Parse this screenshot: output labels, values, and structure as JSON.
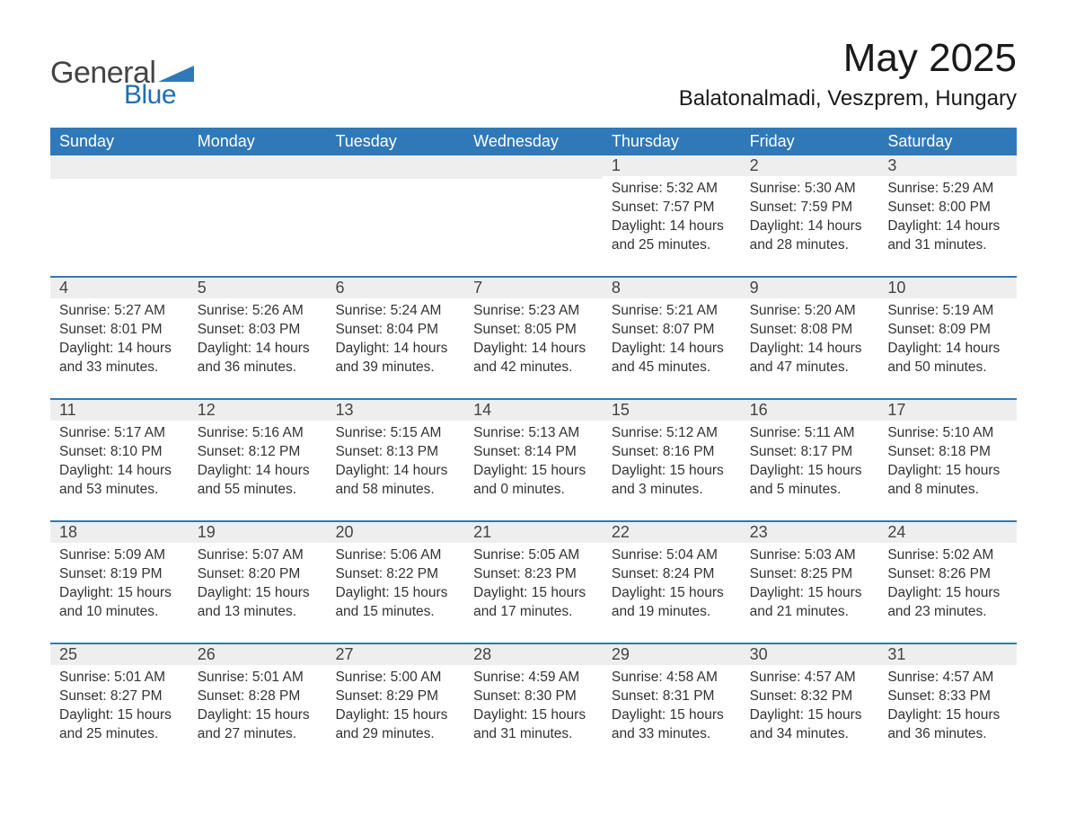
{
  "logo": {
    "text1": "General",
    "text2": "Blue",
    "icon_color": "#2f79b9"
  },
  "title": "May 2025",
  "location": "Balatonalmadi, Veszprem, Hungary",
  "colors": {
    "header_bg": "#2f79b9",
    "daybar_bg": "#eeeeee",
    "row_border": "#2f79b9",
    "text_dark": "#1a1a1a",
    "text_body": "#333333"
  },
  "weekdays": [
    "Sunday",
    "Monday",
    "Tuesday",
    "Wednesday",
    "Thursday",
    "Friday",
    "Saturday"
  ],
  "weeks": [
    [
      {
        "day": "",
        "sunrise": "",
        "sunset": "",
        "daylight": ""
      },
      {
        "day": "",
        "sunrise": "",
        "sunset": "",
        "daylight": ""
      },
      {
        "day": "",
        "sunrise": "",
        "sunset": "",
        "daylight": ""
      },
      {
        "day": "",
        "sunrise": "",
        "sunset": "",
        "daylight": ""
      },
      {
        "day": "1",
        "sunrise": "Sunrise: 5:32 AM",
        "sunset": "Sunset: 7:57 PM",
        "daylight": "Daylight: 14 hours and 25 minutes."
      },
      {
        "day": "2",
        "sunrise": "Sunrise: 5:30 AM",
        "sunset": "Sunset: 7:59 PM",
        "daylight": "Daylight: 14 hours and 28 minutes."
      },
      {
        "day": "3",
        "sunrise": "Sunrise: 5:29 AM",
        "sunset": "Sunset: 8:00 PM",
        "daylight": "Daylight: 14 hours and 31 minutes."
      }
    ],
    [
      {
        "day": "4",
        "sunrise": "Sunrise: 5:27 AM",
        "sunset": "Sunset: 8:01 PM",
        "daylight": "Daylight: 14 hours and 33 minutes."
      },
      {
        "day": "5",
        "sunrise": "Sunrise: 5:26 AM",
        "sunset": "Sunset: 8:03 PM",
        "daylight": "Daylight: 14 hours and 36 minutes."
      },
      {
        "day": "6",
        "sunrise": "Sunrise: 5:24 AM",
        "sunset": "Sunset: 8:04 PM",
        "daylight": "Daylight: 14 hours and 39 minutes."
      },
      {
        "day": "7",
        "sunrise": "Sunrise: 5:23 AM",
        "sunset": "Sunset: 8:05 PM",
        "daylight": "Daylight: 14 hours and 42 minutes."
      },
      {
        "day": "8",
        "sunrise": "Sunrise: 5:21 AM",
        "sunset": "Sunset: 8:07 PM",
        "daylight": "Daylight: 14 hours and 45 minutes."
      },
      {
        "day": "9",
        "sunrise": "Sunrise: 5:20 AM",
        "sunset": "Sunset: 8:08 PM",
        "daylight": "Daylight: 14 hours and 47 minutes."
      },
      {
        "day": "10",
        "sunrise": "Sunrise: 5:19 AM",
        "sunset": "Sunset: 8:09 PM",
        "daylight": "Daylight: 14 hours and 50 minutes."
      }
    ],
    [
      {
        "day": "11",
        "sunrise": "Sunrise: 5:17 AM",
        "sunset": "Sunset: 8:10 PM",
        "daylight": "Daylight: 14 hours and 53 minutes."
      },
      {
        "day": "12",
        "sunrise": "Sunrise: 5:16 AM",
        "sunset": "Sunset: 8:12 PM",
        "daylight": "Daylight: 14 hours and 55 minutes."
      },
      {
        "day": "13",
        "sunrise": "Sunrise: 5:15 AM",
        "sunset": "Sunset: 8:13 PM",
        "daylight": "Daylight: 14 hours and 58 minutes."
      },
      {
        "day": "14",
        "sunrise": "Sunrise: 5:13 AM",
        "sunset": "Sunset: 8:14 PM",
        "daylight": "Daylight: 15 hours and 0 minutes."
      },
      {
        "day": "15",
        "sunrise": "Sunrise: 5:12 AM",
        "sunset": "Sunset: 8:16 PM",
        "daylight": "Daylight: 15 hours and 3 minutes."
      },
      {
        "day": "16",
        "sunrise": "Sunrise: 5:11 AM",
        "sunset": "Sunset: 8:17 PM",
        "daylight": "Daylight: 15 hours and 5 minutes."
      },
      {
        "day": "17",
        "sunrise": "Sunrise: 5:10 AM",
        "sunset": "Sunset: 8:18 PM",
        "daylight": "Daylight: 15 hours and 8 minutes."
      }
    ],
    [
      {
        "day": "18",
        "sunrise": "Sunrise: 5:09 AM",
        "sunset": "Sunset: 8:19 PM",
        "daylight": "Daylight: 15 hours and 10 minutes."
      },
      {
        "day": "19",
        "sunrise": "Sunrise: 5:07 AM",
        "sunset": "Sunset: 8:20 PM",
        "daylight": "Daylight: 15 hours and 13 minutes."
      },
      {
        "day": "20",
        "sunrise": "Sunrise: 5:06 AM",
        "sunset": "Sunset: 8:22 PM",
        "daylight": "Daylight: 15 hours and 15 minutes."
      },
      {
        "day": "21",
        "sunrise": "Sunrise: 5:05 AM",
        "sunset": "Sunset: 8:23 PM",
        "daylight": "Daylight: 15 hours and 17 minutes."
      },
      {
        "day": "22",
        "sunrise": "Sunrise: 5:04 AM",
        "sunset": "Sunset: 8:24 PM",
        "daylight": "Daylight: 15 hours and 19 minutes."
      },
      {
        "day": "23",
        "sunrise": "Sunrise: 5:03 AM",
        "sunset": "Sunset: 8:25 PM",
        "daylight": "Daylight: 15 hours and 21 minutes."
      },
      {
        "day": "24",
        "sunrise": "Sunrise: 5:02 AM",
        "sunset": "Sunset: 8:26 PM",
        "daylight": "Daylight: 15 hours and 23 minutes."
      }
    ],
    [
      {
        "day": "25",
        "sunrise": "Sunrise: 5:01 AM",
        "sunset": "Sunset: 8:27 PM",
        "daylight": "Daylight: 15 hours and 25 minutes."
      },
      {
        "day": "26",
        "sunrise": "Sunrise: 5:01 AM",
        "sunset": "Sunset: 8:28 PM",
        "daylight": "Daylight: 15 hours and 27 minutes."
      },
      {
        "day": "27",
        "sunrise": "Sunrise: 5:00 AM",
        "sunset": "Sunset: 8:29 PM",
        "daylight": "Daylight: 15 hours and 29 minutes."
      },
      {
        "day": "28",
        "sunrise": "Sunrise: 4:59 AM",
        "sunset": "Sunset: 8:30 PM",
        "daylight": "Daylight: 15 hours and 31 minutes."
      },
      {
        "day": "29",
        "sunrise": "Sunrise: 4:58 AM",
        "sunset": "Sunset: 8:31 PM",
        "daylight": "Daylight: 15 hours and 33 minutes."
      },
      {
        "day": "30",
        "sunrise": "Sunrise: 4:57 AM",
        "sunset": "Sunset: 8:32 PM",
        "daylight": "Daylight: 15 hours and 34 minutes."
      },
      {
        "day": "31",
        "sunrise": "Sunrise: 4:57 AM",
        "sunset": "Sunset: 8:33 PM",
        "daylight": "Daylight: 15 hours and 36 minutes."
      }
    ]
  ]
}
